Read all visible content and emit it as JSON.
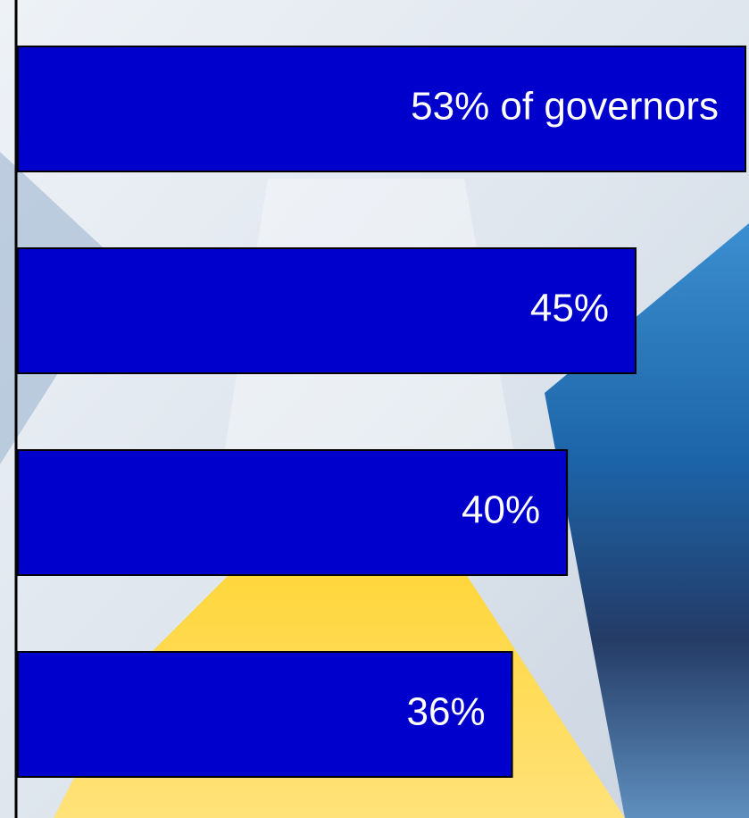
{
  "chart_data": {
    "type": "bar",
    "orientation": "horizontal",
    "categories": [
      null,
      null,
      null,
      null
    ],
    "values": [
      53,
      45,
      40,
      36
    ],
    "value_labels": [
      "53% of governors",
      "45%",
      "40%",
      "36%"
    ],
    "color": "#0000cc"
  }
}
